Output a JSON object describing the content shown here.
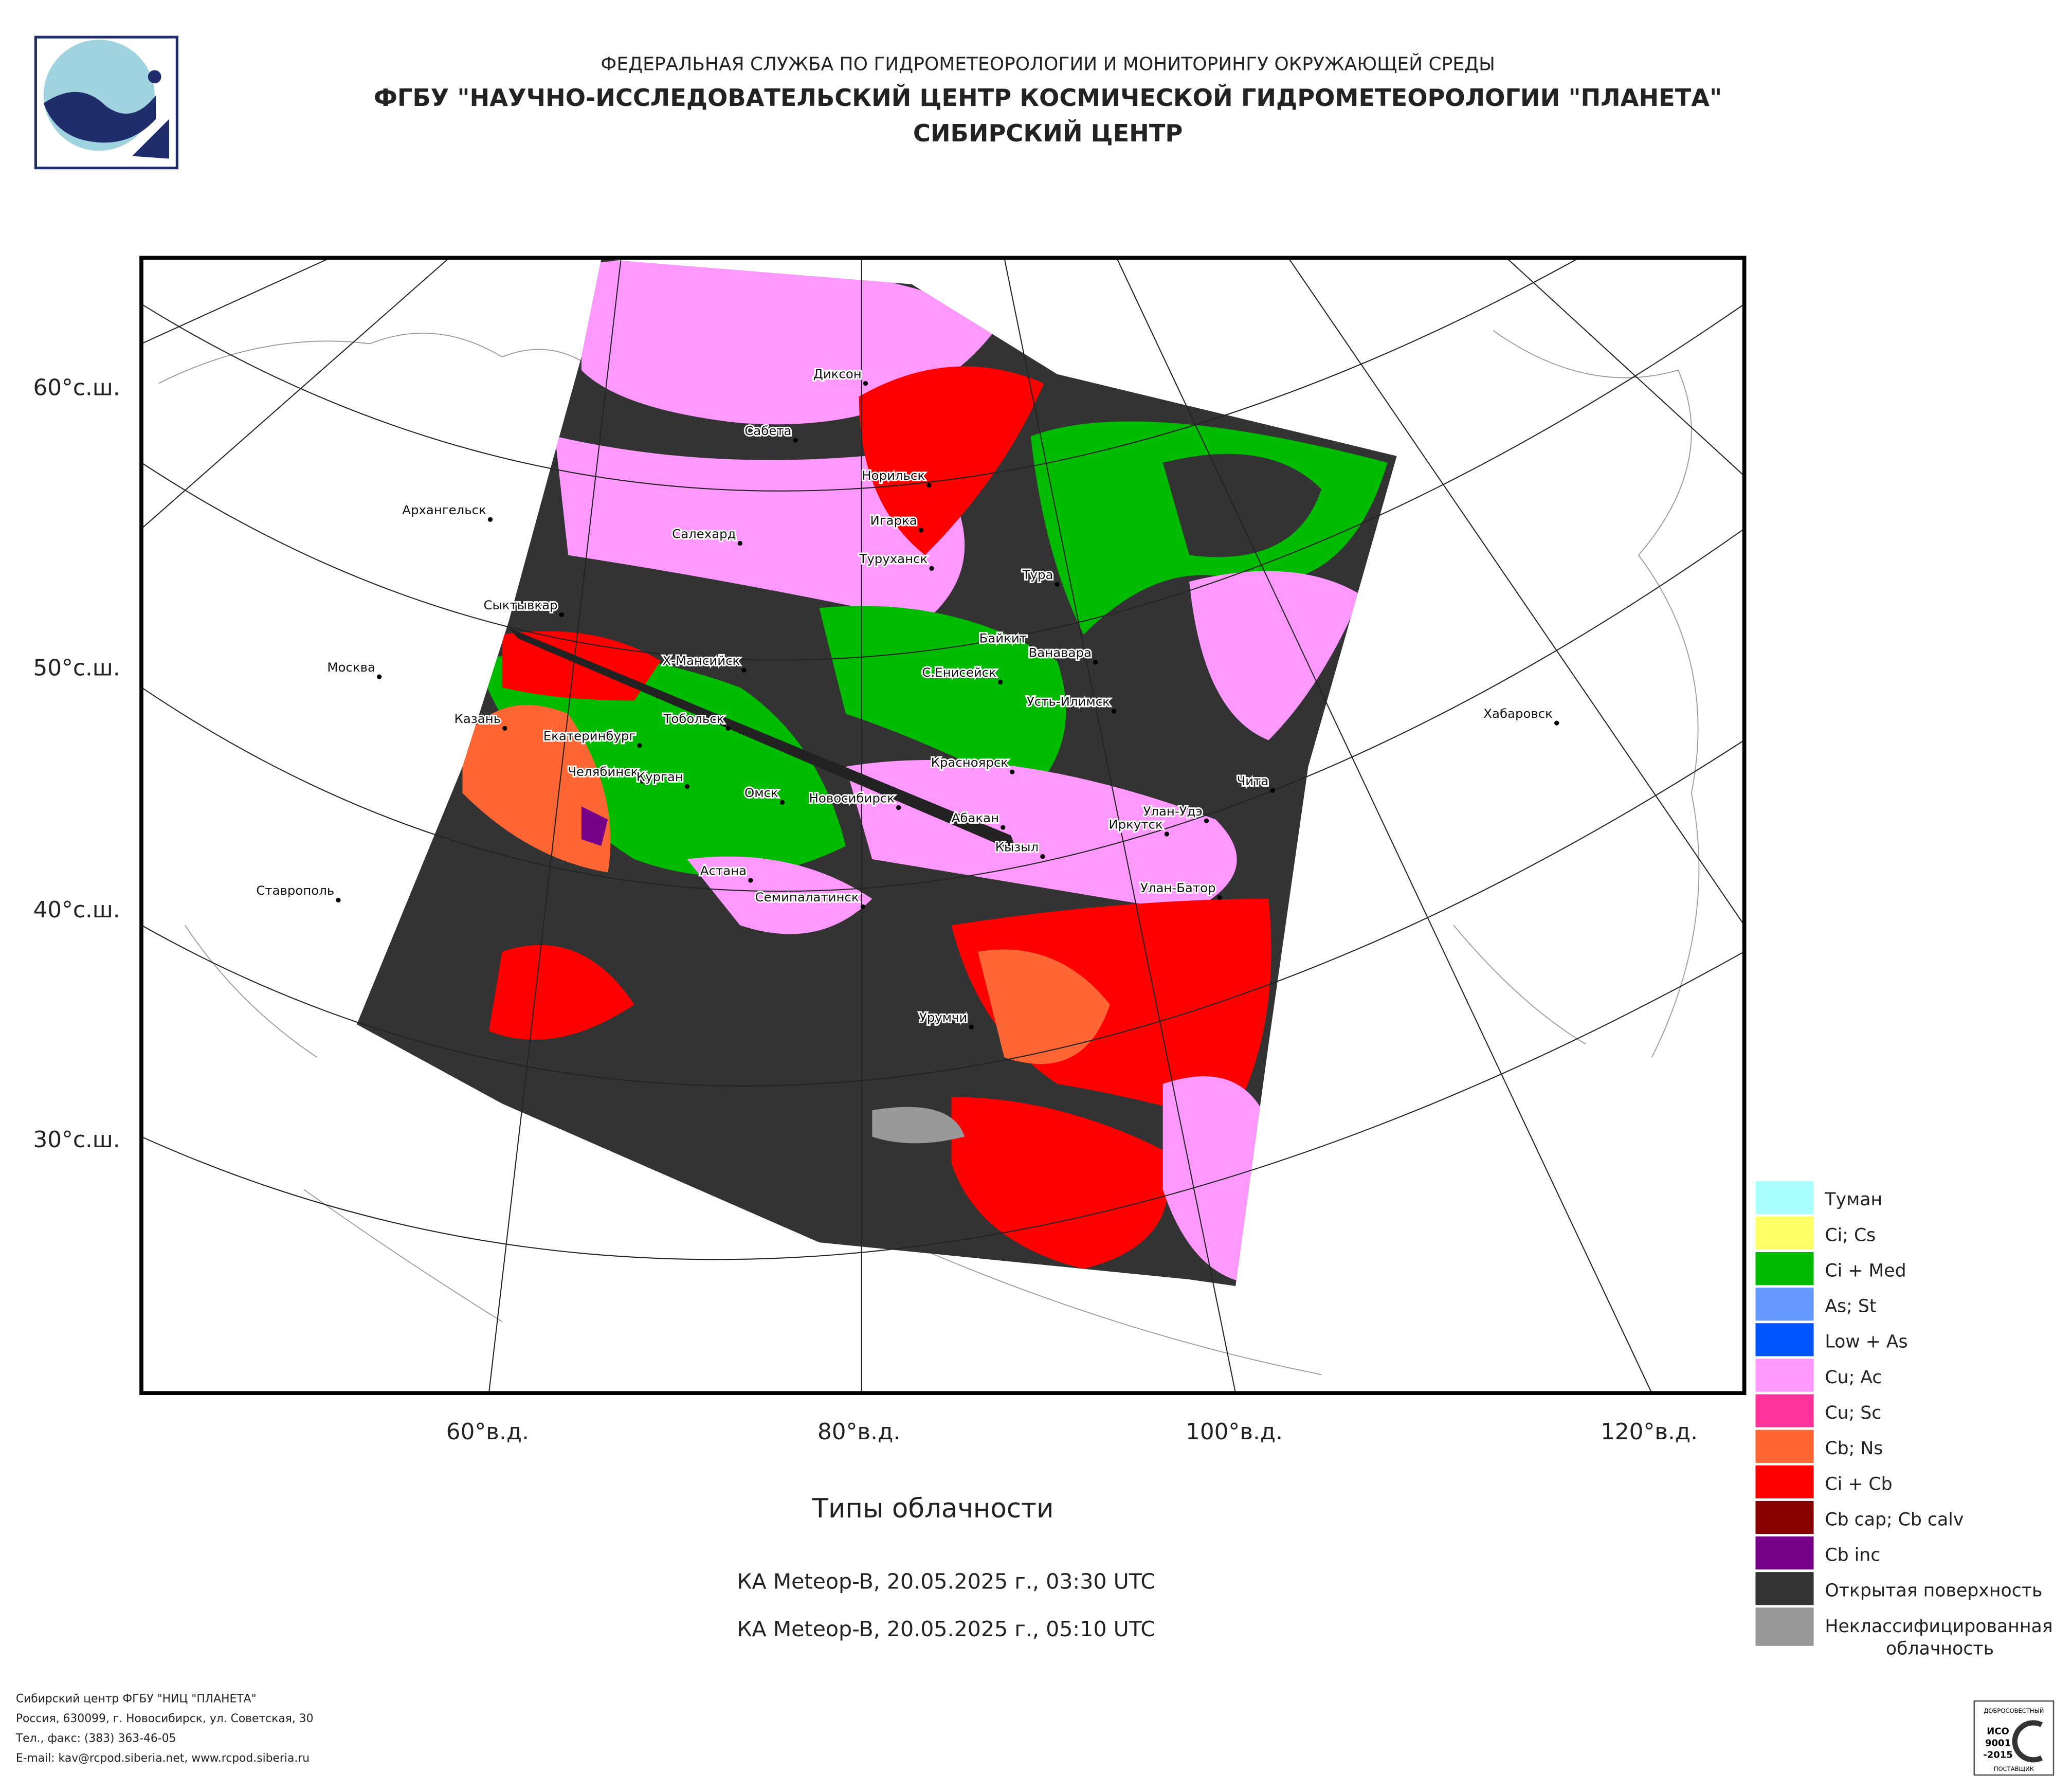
{
  "header": {
    "agency": "ФЕДЕРАЛЬНАЯ СЛУЖБА ПО ГИДРОМЕТЕОРОЛОГИИ И МОНИТОРИНГУ ОКРУЖАЮЩЕЙ СРЕДЫ",
    "institute": "ФГБУ \"НАУЧНО-ИССЛЕДОВАТЕЛЬСКИЙ ЦЕНТР КОСМИЧЕСКОЙ ГИДРОМЕТЕОРОЛОГИИ \"ПЛАНЕТА\"",
    "center": "СИБИРСКИЙ ЦЕНТР"
  },
  "map": {
    "lat_labels": [
      "60°с.ш.",
      "50°с.ш.",
      "40°с.ш.",
      "30°с.ш."
    ],
    "lon_labels": [
      "60°в.д.",
      "80°в.д.",
      "100°в.д.",
      "120°в.д."
    ],
    "cities": [
      "Диксон",
      "Сабета",
      "Норильск",
      "Игарка",
      "Архангельск",
      "Салехард",
      "Туруханск",
      "Тура",
      "Сыктывкар",
      "Байкит",
      "Ванавара",
      "Москва",
      "Х-Мансийск",
      "С.Енисейск",
      "Усть-Илимск",
      "Хабаровск",
      "Казань",
      "Тобольск",
      "Екатеринбург",
      "Красноярск",
      "Чита",
      "Челябинск",
      "Курган",
      "Омск",
      "Новосибирск",
      "Улан-Удэ",
      "Абакан",
      "Иркутск",
      "Кызыл",
      "Астана",
      "Ставрополь",
      "Семипалатинск",
      "Улан-Батор",
      "Урумчи"
    ]
  },
  "legend": {
    "items": [
      {
        "lines": [
          "Туман"
        ],
        "color": "#aaffff"
      },
      {
        "lines": [
          "Ci; Cs"
        ],
        "color": "#ffff66"
      },
      {
        "lines": [
          "Ci + Med"
        ],
        "color": "#00bb00"
      },
      {
        "lines": [
          "As; St"
        ],
        "color": "#6699ff"
      },
      {
        "lines": [
          "Low + As"
        ],
        "color": "#0055ff"
      },
      {
        "lines": [
          "Cu; Ac"
        ],
        "color": "#ff99ff"
      },
      {
        "lines": [
          "Cu; Sc"
        ],
        "color": "#ff3399"
      },
      {
        "lines": [
          "Cb; Ns"
        ],
        "color": "#ff6633"
      },
      {
        "lines": [
          "Ci + Cb"
        ],
        "color": "#ff0000"
      },
      {
        "lines": [
          "Cb cap; Cb calv"
        ],
        "color": "#880000"
      },
      {
        "lines": [
          "Cb inc"
        ],
        "color": "#770088"
      },
      {
        "lines": [
          "Открытая поверхность"
        ],
        "color": "#333333"
      },
      {
        "lines": [
          "Неклассифицированная",
          "облачность"
        ],
        "color": "#999999"
      }
    ]
  },
  "caption": {
    "title": "Типы облачности",
    "passes": [
      "КА Meteop-B, 20.05.2025 г., 03:30 UTC",
      "КА Meteop-B, 20.05.2025 г., 05:10 UTC"
    ]
  },
  "footer": {
    "lines": [
      "Сибирский центр ФГБУ \"НИЦ \"ПЛАНЕТА\"",
      "Россия, 630099, г. Новосибирск, ул. Советская, 30",
      "Тел., факс: (383) 363-46-05",
      "E-mail: kav@rcpod.siberia.net, www.rcpod.siberia.ru"
    ]
  },
  "iso": {
    "top": "ДОБРОСОВЕСТНЫЙ",
    "code": "ИСО",
    "number": "9001",
    "year": "-2015",
    "bottom": "ПОСТАВЩИК"
  }
}
